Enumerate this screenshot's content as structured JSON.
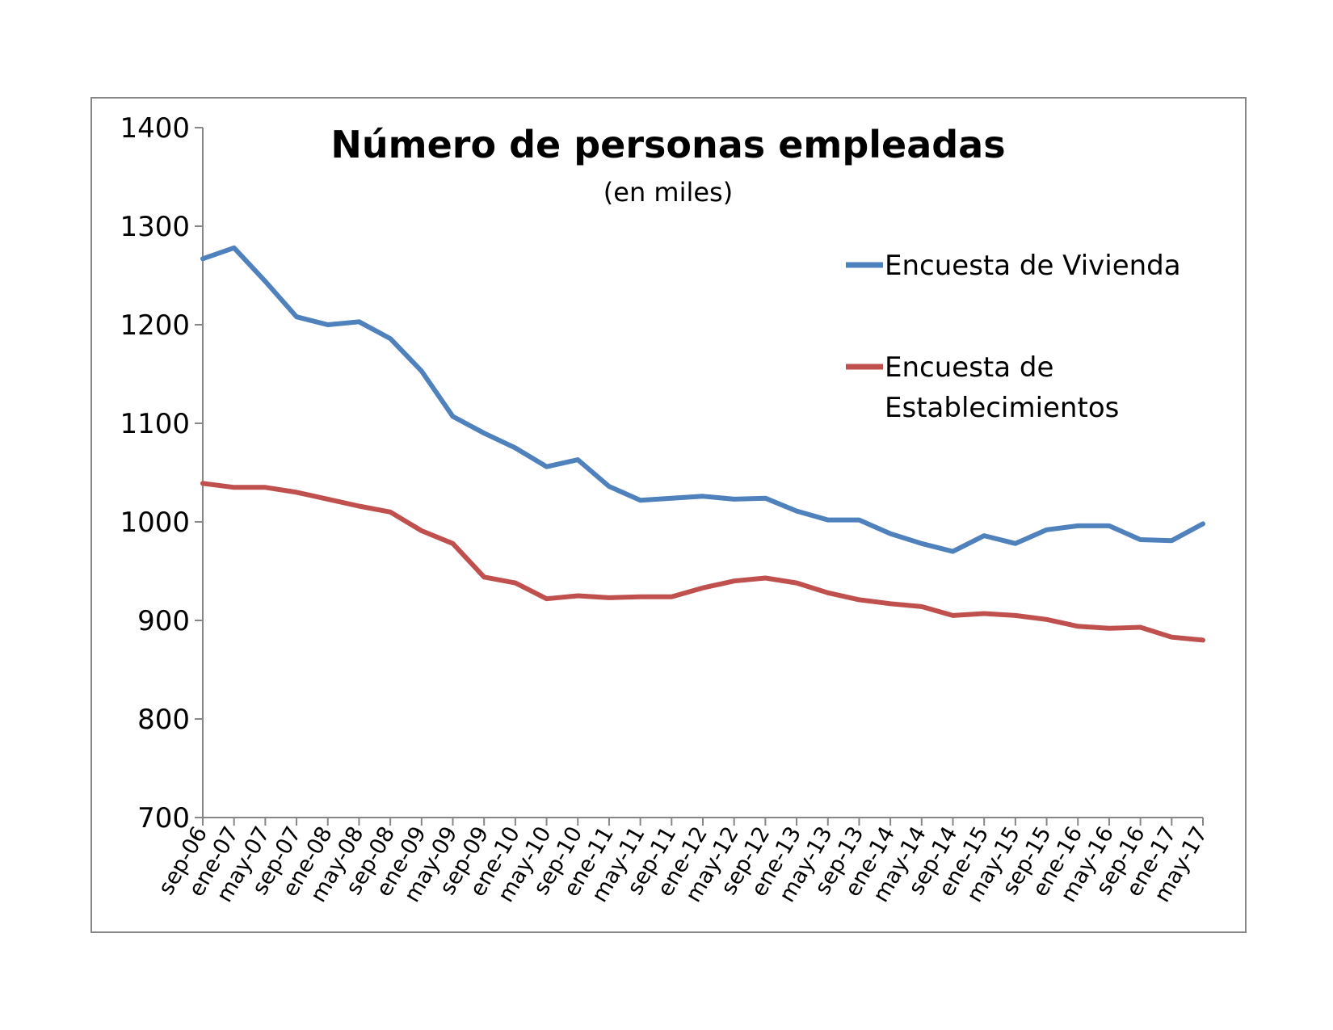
{
  "chart_data": {
    "type": "line",
    "title": "Número de personas empleadas",
    "subtitle": "(en miles)",
    "xlabel": "",
    "ylabel": "",
    "ylim": [
      700,
      1400
    ],
    "yticks": [
      700,
      800,
      900,
      1000,
      1100,
      1200,
      1300,
      1400
    ],
    "x_tick_labels": [
      "sep-06",
      "ene-07",
      "may-07",
      "sep-07",
      "ene-08",
      "may-08",
      "sep-08",
      "ene-09",
      "may-09",
      "sep-09",
      "ene-10",
      "may-10",
      "sep-10",
      "ene-11",
      "may-11",
      "sep-11",
      "ene-12",
      "may-12",
      "sep-12",
      "ene-13",
      "may-13",
      "sep-13",
      "ene-14",
      "may-14",
      "sep-14",
      "ene-15",
      "may-15",
      "sep-15",
      "ene-16",
      "may-16",
      "sep-16",
      "ene-17",
      "may-17"
    ],
    "grid": false,
    "legend_position": "top-right",
    "series": [
      {
        "name": "Encuesta de Vivienda",
        "color": "#4f81bd",
        "x": [
          "sep-06",
          "ene-07",
          "may-07",
          "sep-07",
          "ene-08",
          "may-08",
          "sep-08",
          "ene-09",
          "may-09",
          "sep-09",
          "ene-10",
          "may-10",
          "sep-10",
          "ene-11",
          "may-11",
          "sep-11",
          "ene-12",
          "may-12",
          "sep-12",
          "ene-13",
          "may-13",
          "sep-13",
          "ene-14",
          "may-14",
          "sep-14",
          "ene-15",
          "may-15",
          "sep-15",
          "ene-16",
          "may-16",
          "sep-16",
          "ene-17",
          "may-17"
        ],
        "values": [
          1267,
          1278,
          1244,
          1208,
          1200,
          1203,
          1186,
          1153,
          1107,
          1090,
          1075,
          1056,
          1063,
          1036,
          1022,
          1024,
          1026,
          1023,
          1024,
          1011,
          1002,
          1002,
          988,
          978,
          970,
          986,
          978,
          992,
          996,
          996,
          982,
          981,
          998
        ]
      },
      {
        "name": "Encuesta de\nEstablecimientos",
        "color": "#c0504d",
        "x": [
          "sep-06",
          "ene-07",
          "may-07",
          "sep-07",
          "ene-08",
          "may-08",
          "sep-08",
          "ene-09",
          "may-09",
          "sep-09",
          "ene-10",
          "may-10",
          "sep-10",
          "ene-11",
          "may-11",
          "sep-11",
          "ene-12",
          "may-12",
          "sep-12",
          "ene-13",
          "may-13",
          "sep-13",
          "ene-14",
          "may-14",
          "sep-14",
          "ene-15",
          "may-15",
          "sep-15",
          "ene-16",
          "may-16",
          "sep-16",
          "ene-17",
          "may-17"
        ],
        "values": [
          1039,
          1035,
          1035,
          1030,
          1023,
          1016,
          1010,
          991,
          978,
          944,
          938,
          922,
          925,
          923,
          924,
          924,
          933,
          940,
          943,
          938,
          928,
          921,
          917,
          914,
          905,
          907,
          905,
          901,
          894,
          892,
          893,
          883,
          880
        ]
      }
    ]
  }
}
